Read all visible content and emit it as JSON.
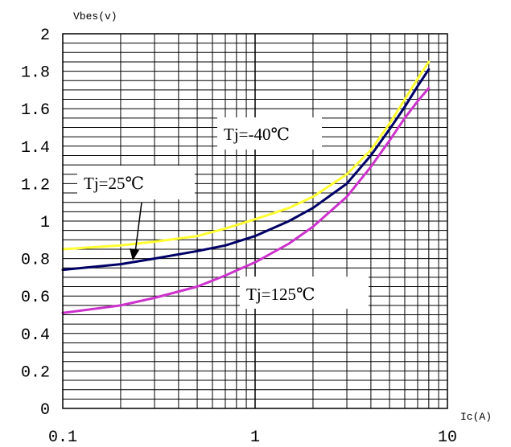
{
  "chart_data": {
    "type": "line",
    "x_scale": "log",
    "xlim": [
      0.1,
      10
    ],
    "ylim": [
      0,
      2
    ],
    "ylabel": "Vbes(v)",
    "xlabel": "Ic(A)",
    "x_ticks": [
      0.1,
      1,
      10
    ],
    "x_tick_labels": [
      "0.1",
      "1",
      "10"
    ],
    "y_ticks": [
      0,
      0.2,
      0.4,
      0.6,
      0.8,
      1,
      1.2,
      1.4,
      1.6,
      1.8,
      2
    ],
    "y_tick_labels": [
      "0",
      "0.2",
      "0.4",
      "0.6",
      "0.8",
      "1",
      "1.2",
      "1.4",
      "1.6",
      "1.8",
      "2"
    ],
    "grid": true,
    "series": [
      {
        "color": "#ffff33",
        "x": [
          0.1,
          0.2,
          0.3,
          0.5,
          0.7,
          1,
          1.5,
          2,
          3,
          4,
          5,
          6,
          7,
          8
        ],
        "y": [
          0.85,
          0.87,
          0.89,
          0.92,
          0.96,
          1.01,
          1.07,
          1.13,
          1.25,
          1.38,
          1.52,
          1.65,
          1.76,
          1.85
        ]
      },
      {
        "color": "#000066",
        "x": [
          0.1,
          0.2,
          0.3,
          0.5,
          0.7,
          1,
          1.5,
          2,
          3,
          4,
          5,
          6,
          7,
          8
        ],
        "y": [
          0.74,
          0.77,
          0.8,
          0.84,
          0.87,
          0.92,
          1.0,
          1.07,
          1.2,
          1.35,
          1.49,
          1.61,
          1.72,
          1.81
        ]
      },
      {
        "color": "#cc33cc",
        "x": [
          0.1,
          0.2,
          0.3,
          0.5,
          0.7,
          1,
          1.5,
          2,
          3,
          4,
          5,
          6,
          7,
          8
        ],
        "y": [
          0.51,
          0.55,
          0.59,
          0.65,
          0.71,
          0.78,
          0.88,
          0.97,
          1.13,
          1.29,
          1.43,
          1.55,
          1.64,
          1.71
        ]
      }
    ],
    "annotations": [
      {
        "id": "tj-minus40",
        "text": "Tj=-40℃"
      },
      {
        "id": "tj-25",
        "text": "Tj=25℃"
      },
      {
        "id": "tj-125",
        "text": "Tj=125℃"
      }
    ]
  }
}
